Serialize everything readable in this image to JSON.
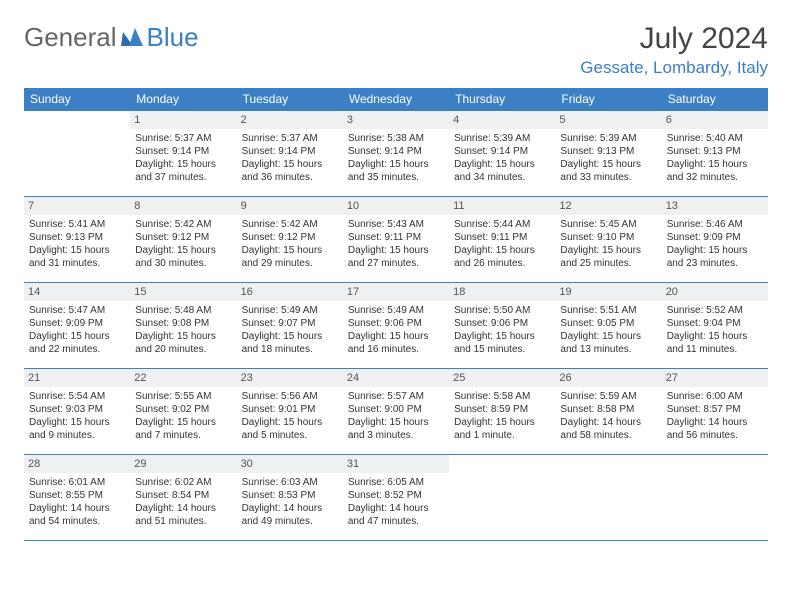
{
  "brand": {
    "part1": "General",
    "part2": "Blue"
  },
  "title": "July 2024",
  "location": "Gessate, Lombardy, Italy",
  "colors": {
    "accent": "#3b7fc4",
    "header_bg": "#3b7fc4",
    "header_text": "#ffffff",
    "daynum_bg": "#eef0f2",
    "text": "#333333",
    "background": "#ffffff"
  },
  "dayHeaders": [
    "Sunday",
    "Monday",
    "Tuesday",
    "Wednesday",
    "Thursday",
    "Friday",
    "Saturday"
  ],
  "startOffset": 1,
  "days": [
    {
      "n": 1,
      "sunrise": "5:37 AM",
      "sunset": "9:14 PM",
      "daylight": "15 hours and 37 minutes."
    },
    {
      "n": 2,
      "sunrise": "5:37 AM",
      "sunset": "9:14 PM",
      "daylight": "15 hours and 36 minutes."
    },
    {
      "n": 3,
      "sunrise": "5:38 AM",
      "sunset": "9:14 PM",
      "daylight": "15 hours and 35 minutes."
    },
    {
      "n": 4,
      "sunrise": "5:39 AM",
      "sunset": "9:14 PM",
      "daylight": "15 hours and 34 minutes."
    },
    {
      "n": 5,
      "sunrise": "5:39 AM",
      "sunset": "9:13 PM",
      "daylight": "15 hours and 33 minutes."
    },
    {
      "n": 6,
      "sunrise": "5:40 AM",
      "sunset": "9:13 PM",
      "daylight": "15 hours and 32 minutes."
    },
    {
      "n": 7,
      "sunrise": "5:41 AM",
      "sunset": "9:13 PM",
      "daylight": "15 hours and 31 minutes."
    },
    {
      "n": 8,
      "sunrise": "5:42 AM",
      "sunset": "9:12 PM",
      "daylight": "15 hours and 30 minutes."
    },
    {
      "n": 9,
      "sunrise": "5:42 AM",
      "sunset": "9:12 PM",
      "daylight": "15 hours and 29 minutes."
    },
    {
      "n": 10,
      "sunrise": "5:43 AM",
      "sunset": "9:11 PM",
      "daylight": "15 hours and 27 minutes."
    },
    {
      "n": 11,
      "sunrise": "5:44 AM",
      "sunset": "9:11 PM",
      "daylight": "15 hours and 26 minutes."
    },
    {
      "n": 12,
      "sunrise": "5:45 AM",
      "sunset": "9:10 PM",
      "daylight": "15 hours and 25 minutes."
    },
    {
      "n": 13,
      "sunrise": "5:46 AM",
      "sunset": "9:09 PM",
      "daylight": "15 hours and 23 minutes."
    },
    {
      "n": 14,
      "sunrise": "5:47 AM",
      "sunset": "9:09 PM",
      "daylight": "15 hours and 22 minutes."
    },
    {
      "n": 15,
      "sunrise": "5:48 AM",
      "sunset": "9:08 PM",
      "daylight": "15 hours and 20 minutes."
    },
    {
      "n": 16,
      "sunrise": "5:49 AM",
      "sunset": "9:07 PM",
      "daylight": "15 hours and 18 minutes."
    },
    {
      "n": 17,
      "sunrise": "5:49 AM",
      "sunset": "9:06 PM",
      "daylight": "15 hours and 16 minutes."
    },
    {
      "n": 18,
      "sunrise": "5:50 AM",
      "sunset": "9:06 PM",
      "daylight": "15 hours and 15 minutes."
    },
    {
      "n": 19,
      "sunrise": "5:51 AM",
      "sunset": "9:05 PM",
      "daylight": "15 hours and 13 minutes."
    },
    {
      "n": 20,
      "sunrise": "5:52 AM",
      "sunset": "9:04 PM",
      "daylight": "15 hours and 11 minutes."
    },
    {
      "n": 21,
      "sunrise": "5:54 AM",
      "sunset": "9:03 PM",
      "daylight": "15 hours and 9 minutes."
    },
    {
      "n": 22,
      "sunrise": "5:55 AM",
      "sunset": "9:02 PM",
      "daylight": "15 hours and 7 minutes."
    },
    {
      "n": 23,
      "sunrise": "5:56 AM",
      "sunset": "9:01 PM",
      "daylight": "15 hours and 5 minutes."
    },
    {
      "n": 24,
      "sunrise": "5:57 AM",
      "sunset": "9:00 PM",
      "daylight": "15 hours and 3 minutes."
    },
    {
      "n": 25,
      "sunrise": "5:58 AM",
      "sunset": "8:59 PM",
      "daylight": "15 hours and 1 minute."
    },
    {
      "n": 26,
      "sunrise": "5:59 AM",
      "sunset": "8:58 PM",
      "daylight": "14 hours and 58 minutes."
    },
    {
      "n": 27,
      "sunrise": "6:00 AM",
      "sunset": "8:57 PM",
      "daylight": "14 hours and 56 minutes."
    },
    {
      "n": 28,
      "sunrise": "6:01 AM",
      "sunset": "8:55 PM",
      "daylight": "14 hours and 54 minutes."
    },
    {
      "n": 29,
      "sunrise": "6:02 AM",
      "sunset": "8:54 PM",
      "daylight": "14 hours and 51 minutes."
    },
    {
      "n": 30,
      "sunrise": "6:03 AM",
      "sunset": "8:53 PM",
      "daylight": "14 hours and 49 minutes."
    },
    {
      "n": 31,
      "sunrise": "6:05 AM",
      "sunset": "8:52 PM",
      "daylight": "14 hours and 47 minutes."
    }
  ],
  "labels": {
    "sunrise": "Sunrise:",
    "sunset": "Sunset:",
    "daylight": "Daylight:"
  }
}
